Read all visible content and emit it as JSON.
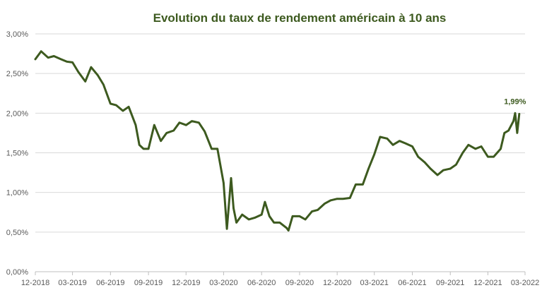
{
  "chart_data": {
    "type": "line",
    "title": "Evolution du taux de rendement américain à 10 ans",
    "xlabel": "",
    "ylabel": "",
    "ylim": [
      0,
      3
    ],
    "y_ticks": [
      "0,00%",
      "0,50%",
      "1,00%",
      "1,50%",
      "2,00%",
      "2,50%",
      "3,00%"
    ],
    "y_tick_values": [
      0,
      0.5,
      1,
      1.5,
      2,
      2.5,
      3
    ],
    "x_ticks": [
      "12-2018",
      "03-2019",
      "06-2019",
      "09-2019",
      "12-2019",
      "03-2020",
      "06-2020",
      "09-2020",
      "12-2020",
      "03-2021",
      "06-2021",
      "09-2021",
      "12-2021",
      "03-2022"
    ],
    "grid": true,
    "series": [
      {
        "color": "#3d5a1f",
        "x": [
          "2018-12-01",
          "2018-12-15",
          "2019-01-01",
          "2019-01-15",
          "2019-02-01",
          "2019-02-15",
          "2019-03-01",
          "2019-03-15",
          "2019-04-01",
          "2019-04-15",
          "2019-05-01",
          "2019-05-15",
          "2019-06-01",
          "2019-06-15",
          "2019-07-01",
          "2019-07-15",
          "2019-08-01",
          "2019-08-10",
          "2019-08-20",
          "2019-09-01",
          "2019-09-15",
          "2019-10-01",
          "2019-10-15",
          "2019-11-01",
          "2019-11-15",
          "2019-12-01",
          "2019-12-15",
          "2020-01-01",
          "2020-01-15",
          "2020-02-01",
          "2020-02-15",
          "2020-03-01",
          "2020-03-09",
          "2020-03-19",
          "2020-03-25",
          "2020-04-01",
          "2020-04-15",
          "2020-05-01",
          "2020-05-15",
          "2020-06-01",
          "2020-06-09",
          "2020-06-20",
          "2020-07-01",
          "2020-07-15",
          "2020-08-01",
          "2020-08-05",
          "2020-08-15",
          "2020-09-01",
          "2020-09-15",
          "2020-10-01",
          "2020-10-15",
          "2020-11-01",
          "2020-11-15",
          "2020-12-01",
          "2020-12-15",
          "2021-01-01",
          "2021-01-15",
          "2021-02-01",
          "2021-02-15",
          "2021-03-01",
          "2021-03-15",
          "2021-04-01",
          "2021-04-15",
          "2021-05-01",
          "2021-05-15",
          "2021-06-01",
          "2021-06-15",
          "2021-07-01",
          "2021-07-15",
          "2021-08-01",
          "2021-08-15",
          "2021-09-01",
          "2021-09-15",
          "2021-10-01",
          "2021-10-15",
          "2021-11-01",
          "2021-11-15",
          "2021-12-01",
          "2021-12-15",
          "2022-01-01",
          "2022-01-10",
          "2022-01-20",
          "2022-02-01",
          "2022-02-05",
          "2022-02-10",
          "2022-02-15"
        ],
        "values": [
          2.68,
          2.78,
          2.7,
          2.72,
          2.68,
          2.65,
          2.64,
          2.52,
          2.4,
          2.58,
          2.48,
          2.36,
          2.12,
          2.1,
          2.03,
          2.08,
          1.85,
          1.6,
          1.55,
          1.55,
          1.85,
          1.65,
          1.75,
          1.78,
          1.88,
          1.85,
          1.9,
          1.88,
          1.77,
          1.55,
          1.55,
          1.12,
          0.54,
          1.18,
          0.8,
          0.62,
          0.72,
          0.66,
          0.68,
          0.72,
          0.88,
          0.7,
          0.62,
          0.62,
          0.55,
          0.52,
          0.7,
          0.7,
          0.66,
          0.76,
          0.78,
          0.86,
          0.9,
          0.92,
          0.92,
          0.93,
          1.1,
          1.1,
          1.3,
          1.48,
          1.7,
          1.68,
          1.6,
          1.65,
          1.62,
          1.58,
          1.45,
          1.38,
          1.3,
          1.22,
          1.28,
          1.3,
          1.35,
          1.5,
          1.6,
          1.55,
          1.58,
          1.45,
          1.45,
          1.55,
          1.75,
          1.78,
          1.9,
          2.0,
          1.75,
          1.99
        ]
      }
    ],
    "annotations": [
      {
        "text": "1,99%",
        "x": "2022-02-15",
        "y": 1.99
      }
    ]
  }
}
